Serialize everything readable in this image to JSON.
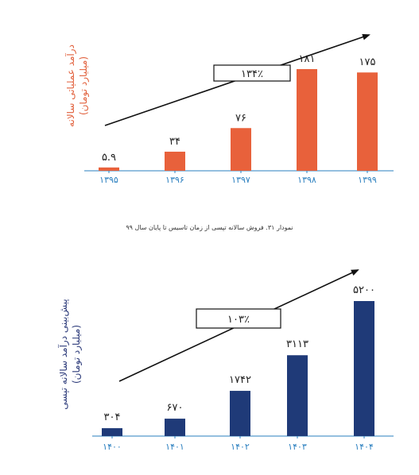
{
  "caption": "نمودار ۳۱. فروش سالانه تپسی از زمان تاسیس تا پایان سال ۹۹",
  "chart_data": [
    {
      "type": "bar",
      "categories": [
        "۱۳۹۵",
        "۱۳۹۶",
        "۱۳۹۷",
        "۱۳۹۸",
        "۱۳۹۹"
      ],
      "values": [
        5.9,
        34,
        76,
        181,
        175
      ],
      "data_labels": [
        "۵.۹",
        "۳۴",
        "۷۶",
        "۱۸۱",
        "۱۷۵"
      ],
      "ylabel": "درآمد عملیاتی سالانه",
      "ylabel_unit": "(میلیارد تومان)",
      "growth_label": "۱۳۴٪",
      "bar_color": "#e8613b",
      "axis_color": "#2a7fbf",
      "grid": false,
      "legend": "none"
    },
    {
      "type": "bar",
      "categories": [
        "۱۴۰۰",
        "۱۴۰۱",
        "۱۴۰۲",
        "۱۴۰۳",
        "۱۴۰۴"
      ],
      "values": [
        304,
        670,
        1742,
        3113,
        5200
      ],
      "data_labels": [
        "۳۰۴",
        "۶۷۰",
        "۱۷۴۲",
        "۳۱۱۳",
        "۵۲۰۰"
      ],
      "ylabel": "پیش‌بینی درآمد سالانه تپسی",
      "ylabel_unit": "(میلیارد تومان)",
      "growth_label": "۱۰۳٪",
      "bar_color": "#1f3a78",
      "axis_color": "#2a7fbf",
      "grid": false,
      "legend": "none"
    }
  ]
}
